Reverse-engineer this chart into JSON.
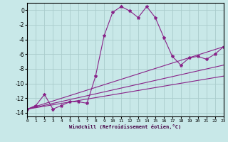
{
  "background_color": "#c8e8e8",
  "grid_color": "#aacccc",
  "line_color": "#882288",
  "xlabel": "Windchill (Refroidissement éolien,°C)",
  "xlim": [
    0,
    23
  ],
  "ylim": [
    -14.5,
    1.0
  ],
  "xticks": [
    0,
    1,
    2,
    3,
    4,
    5,
    6,
    7,
    8,
    9,
    10,
    11,
    12,
    13,
    14,
    15,
    16,
    17,
    18,
    19,
    20,
    21,
    22,
    23
  ],
  "yticks": [
    0,
    -2,
    -4,
    -6,
    -8,
    -10,
    -12,
    -14
  ],
  "curve1_x": [
    0,
    1,
    2,
    3,
    4,
    5,
    6,
    7,
    8,
    9,
    10,
    11,
    12,
    13,
    14,
    15,
    16,
    17,
    18,
    19,
    20,
    21,
    22,
    23
  ],
  "curve1_y": [
    -13.5,
    -13.0,
    -11.5,
    -13.5,
    -13.0,
    -12.5,
    -12.5,
    -12.7,
    -9.0,
    -3.5,
    -0.3,
    0.5,
    -0.1,
    -1.0,
    0.5,
    -1.0,
    -3.7,
    -6.3,
    -7.5,
    -6.5,
    -6.3,
    -6.7,
    -6.0,
    -5.0
  ],
  "line2_x": [
    0,
    23
  ],
  "line2_y": [
    -13.5,
    -5.0
  ],
  "line3_x": [
    0,
    23
  ],
  "line3_y": [
    -13.5,
    -7.5
  ],
  "line4_x": [
    0,
    23
  ],
  "line4_y": [
    -13.5,
    -9.0
  ]
}
